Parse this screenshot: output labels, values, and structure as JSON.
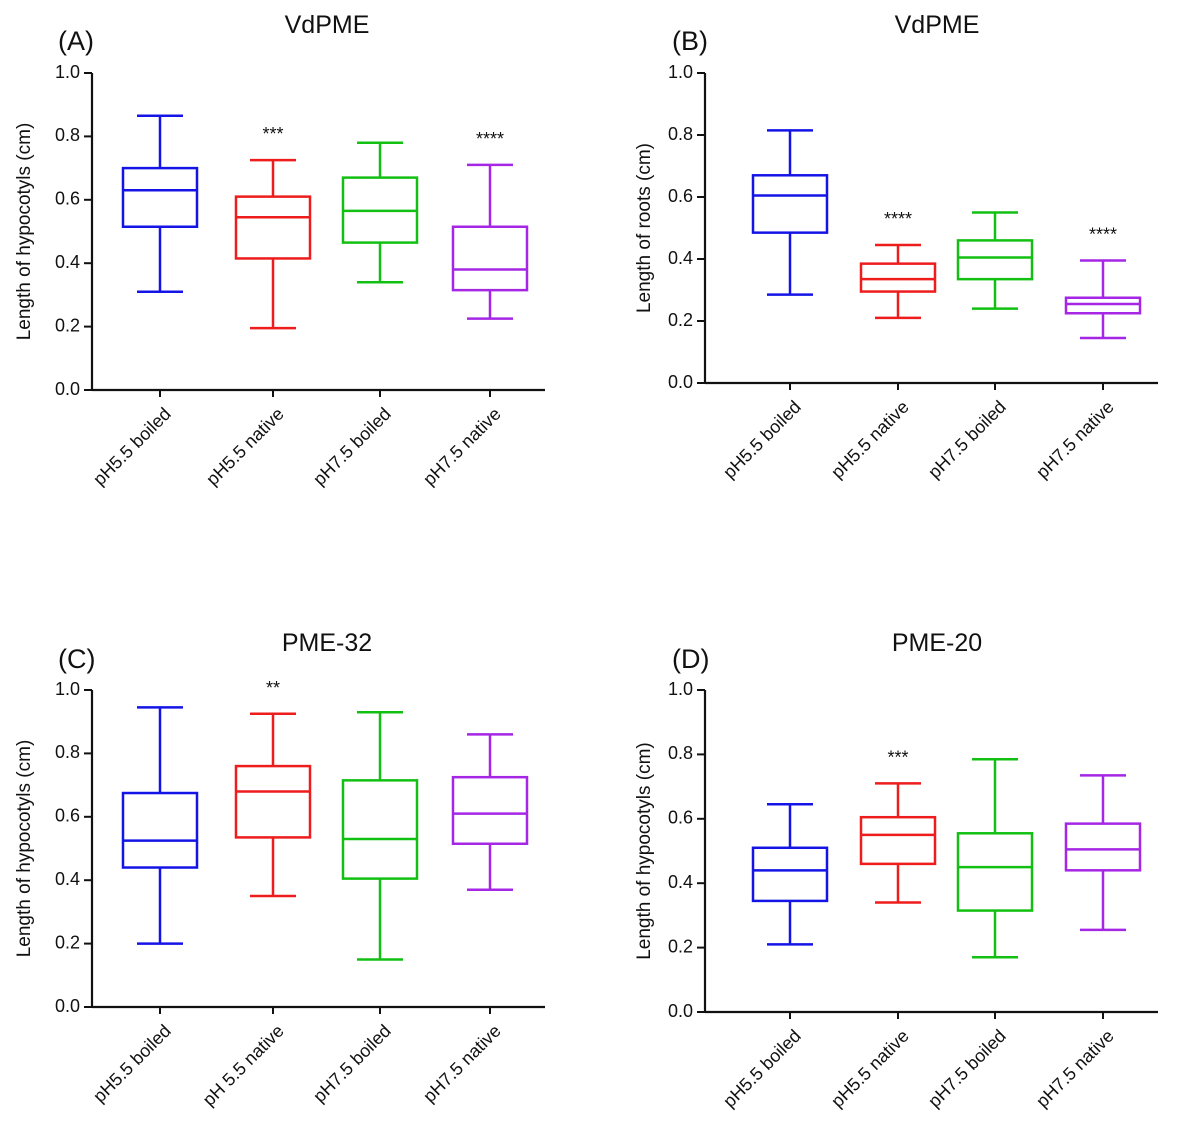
{
  "chart_data": [
    {
      "panel": "(A)",
      "type": "boxplot",
      "title": "VdPME",
      "ylabel": "Length of hypocotyls (cm)",
      "ylim": [
        0,
        1.0
      ],
      "yticks": [
        "0.0",
        "0.2",
        "0.4",
        "0.6",
        "0.8",
        "1.0"
      ],
      "categories": [
        "pH5.5 boiled",
        "pH5.5 native",
        "pH7.5 boiled",
        "pH7.5 native"
      ],
      "boxes": [
        {
          "min": 0.31,
          "q1": 0.515,
          "median": 0.63,
          "q3": 0.7,
          "max": 0.865,
          "sig": ""
        },
        {
          "min": 0.195,
          "q1": 0.415,
          "median": 0.545,
          "q3": 0.61,
          "max": 0.725,
          "sig": "***"
        },
        {
          "min": 0.34,
          "q1": 0.465,
          "median": 0.565,
          "q3": 0.67,
          "max": 0.78,
          "sig": ""
        },
        {
          "min": 0.225,
          "q1": 0.315,
          "median": 0.38,
          "q3": 0.515,
          "max": 0.71,
          "sig": "****"
        }
      ]
    },
    {
      "panel": "(B)",
      "type": "boxplot",
      "title": "VdPME",
      "ylabel": "Length of roots (cm)",
      "ylim": [
        0,
        1.0
      ],
      "yticks": [
        "0.0",
        "0.2",
        "0.4",
        "0.6",
        "0.8",
        "1.0"
      ],
      "categories": [
        "pH5.5 boiled",
        "pH5.5 native",
        "pH7.5 boiled",
        "pH7.5 native"
      ],
      "boxes": [
        {
          "min": 0.285,
          "q1": 0.485,
          "median": 0.605,
          "q3": 0.67,
          "max": 0.815,
          "sig": ""
        },
        {
          "min": 0.21,
          "q1": 0.295,
          "median": 0.335,
          "q3": 0.385,
          "max": 0.445,
          "sig": "****"
        },
        {
          "min": 0.24,
          "q1": 0.335,
          "median": 0.405,
          "q3": 0.46,
          "max": 0.55,
          "sig": ""
        },
        {
          "min": 0.145,
          "q1": 0.225,
          "median": 0.255,
          "q3": 0.275,
          "max": 0.395,
          "sig": "****"
        }
      ]
    },
    {
      "panel": "(C)",
      "type": "boxplot",
      "title": "PME-32",
      "ylabel": "Length of hypocotyls (cm)",
      "ylim": [
        0,
        1.0
      ],
      "yticks": [
        "0.0",
        "0.2",
        "0.4",
        "0.6",
        "0.8",
        "1.0"
      ],
      "categories": [
        "pH5.5 boiled",
        "pH 5.5 native",
        "pH7.5 boiled",
        "pH7.5 native"
      ],
      "boxes": [
        {
          "min": 0.2,
          "q1": 0.44,
          "median": 0.525,
          "q3": 0.675,
          "max": 0.945,
          "sig": ""
        },
        {
          "min": 0.35,
          "q1": 0.535,
          "median": 0.68,
          "q3": 0.76,
          "max": 0.925,
          "sig": "**"
        },
        {
          "min": 0.15,
          "q1": 0.405,
          "median": 0.53,
          "q3": 0.715,
          "max": 0.93,
          "sig": ""
        },
        {
          "min": 0.37,
          "q1": 0.515,
          "median": 0.61,
          "q3": 0.725,
          "max": 0.86,
          "sig": ""
        }
      ]
    },
    {
      "panel": "(D)",
      "type": "boxplot",
      "title": "PME-20",
      "ylabel": "Length of hypocotyls (cm)",
      "ylim": [
        0,
        1.0
      ],
      "yticks": [
        "0.0",
        "0.2",
        "0.4",
        "0.6",
        "0.8",
        "1.0"
      ],
      "categories": [
        "pH5.5 boiled",
        "pH5.5 native",
        "pH7.5 boiled",
        "pH7.5 native"
      ],
      "boxes": [
        {
          "min": 0.21,
          "q1": 0.345,
          "median": 0.44,
          "q3": 0.51,
          "max": 0.645,
          "sig": ""
        },
        {
          "min": 0.34,
          "q1": 0.46,
          "median": 0.55,
          "q3": 0.605,
          "max": 0.71,
          "sig": "***"
        },
        {
          "min": 0.17,
          "q1": 0.315,
          "median": 0.45,
          "q3": 0.555,
          "max": 0.785,
          "sig": ""
        },
        {
          "min": 0.255,
          "q1": 0.44,
          "median": 0.505,
          "q3": 0.585,
          "max": 0.735,
          "sig": ""
        }
      ]
    }
  ],
  "colors": [
    "#1414e6",
    "#ee1c1c",
    "#12c012",
    "#a626e6"
  ]
}
